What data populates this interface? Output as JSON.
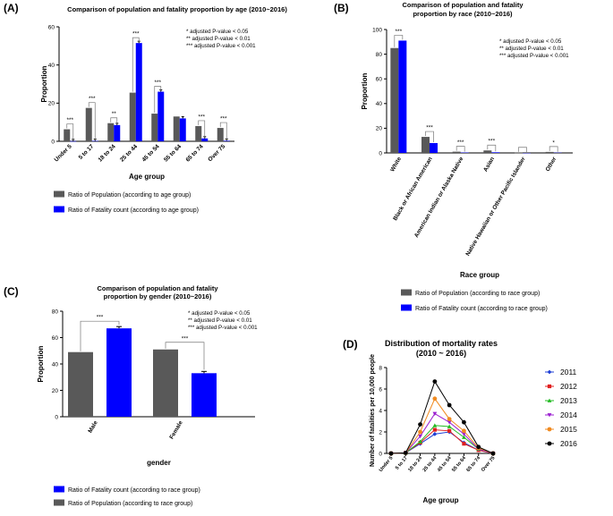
{
  "colors": {
    "population": "#595959",
    "fatality": "#0000ff",
    "black": "#000000"
  },
  "chart_data": [
    {
      "panel": "(A)",
      "type": "bar",
      "title": "Comparison of population and fatality proportion by age (2010~2016)",
      "xlabel": "Age group",
      "ylabel": "Proportion",
      "ylim": [
        0,
        60
      ],
      "yticks": [
        0,
        20,
        40,
        60
      ],
      "categories": [
        "Under 5",
        "5 to 17",
        "18 to 24",
        "25 to 44",
        "45 to 54",
        "55 to 64",
        "65 to 74",
        "Over 75"
      ],
      "series": [
        {
          "name": "Ratio of Population (according to age group)",
          "values": [
            6.3,
            17.5,
            9.5,
            25.5,
            14.5,
            13.0,
            8.0,
            7.0
          ]
        },
        {
          "name": "Ratio of Fatality count (according to age group)",
          "values": [
            0.1,
            0.2,
            8.5,
            51.5,
            26.0,
            12.0,
            1.5,
            0.3
          ]
        }
      ],
      "significance": [
        "***",
        "***",
        "**",
        "***",
        "***",
        "",
        "***",
        "***"
      ],
      "annotations": [
        "*  adjusted P-value  < 0.05",
        "**  adjusted P-value  < 0.01",
        "*** adjusted P-value  < 0.001"
      ]
    },
    {
      "panel": "(B)",
      "type": "bar",
      "title": [
        "Comparison of population and fatality",
        "proportion by race (2010~2016)"
      ],
      "xlabel": "Race group",
      "ylabel": "Proportion",
      "ylim": [
        0,
        100
      ],
      "yticks": [
        0,
        20,
        40,
        60,
        80,
        100
      ],
      "categories": [
        "White",
        "Black or African American",
        "American Indian or Alaska Native",
        "Asian",
        "Native Hawaiian or Other Pacific Islander",
        "Other"
      ],
      "series": [
        {
          "name": "Ratio of Population (according to race group)",
          "values": [
            85.0,
            13.0,
            1.0,
            2.0,
            0.2,
            0.8
          ]
        },
        {
          "name": "Ratio of Fatality count (according to race group)",
          "values": [
            91.0,
            8.0,
            0.3,
            0.5,
            0.0,
            0.2
          ]
        }
      ],
      "significance": [
        "***",
        "***",
        "***",
        "***",
        "",
        "*"
      ],
      "annotations": [
        "*  adjusted P-value  < 0.05",
        "**  adjusted P-value  < 0.01",
        "*** adjusted P-value  < 0.001"
      ]
    },
    {
      "panel": "(C)",
      "type": "bar",
      "title": [
        "Comparison of population and fatality",
        "proportion by gender (2010~2016)"
      ],
      "xlabel": "gender",
      "ylabel": "Proportion",
      "ylim": [
        0,
        80
      ],
      "yticks": [
        0,
        20,
        40,
        60,
        80
      ],
      "categories": [
        "Male",
        "Female"
      ],
      "series": [
        {
          "name": "Ratio of Population (according to race group)",
          "values": [
            49.0,
            51.0
          ]
        },
        {
          "name": "Ratio of Fatality count (according to race group)",
          "values": [
            67.0,
            33.0
          ]
        }
      ],
      "significance": [
        "***",
        "***"
      ],
      "annotations": [
        "*  adjusted P-value  < 0.05",
        "**  adjusted P-value  < 0.01",
        "*** adjusted P-value  < 0.001"
      ]
    },
    {
      "panel": "(D)",
      "type": "line",
      "title": [
        "Distribution of mortality rates",
        "(2010 ~ 2016)"
      ],
      "xlabel": "Age group",
      "ylabel": "Number of fatalities per 10,000 people",
      "ylim": [
        0,
        8
      ],
      "yticks": [
        0,
        2,
        4,
        6,
        8
      ],
      "categories": [
        "Under 5",
        "5 to 17",
        "18 to 24",
        "25 to 44",
        "45 to 54",
        "55 to 64",
        "65 to 74",
        "Over 75"
      ],
      "series": [
        {
          "name": "2011",
          "color": "#1f3fd6",
          "marker": "diamond",
          "values": [
            0.0,
            0.05,
            0.9,
            1.8,
            2.0,
            1.0,
            0.3,
            0.0
          ]
        },
        {
          "name": "2012",
          "color": "#e02020",
          "marker": "square",
          "values": [
            0.0,
            0.05,
            1.0,
            2.2,
            2.1,
            0.9,
            0.3,
            0.0
          ]
        },
        {
          "name": "2013",
          "color": "#22bb22",
          "marker": "triangle",
          "values": [
            0.0,
            0.05,
            1.1,
            2.6,
            2.5,
            1.5,
            0.4,
            0.0
          ]
        },
        {
          "name": "2014",
          "color": "#9b1fd0",
          "marker": "triangle-down",
          "values": [
            0.0,
            0.05,
            1.6,
            3.7,
            2.9,
            1.8,
            0.4,
            0.0
          ]
        },
        {
          "name": "2015",
          "color": "#f08a20",
          "marker": "circle",
          "values": [
            0.0,
            0.05,
            2.0,
            5.1,
            3.2,
            2.1,
            0.5,
            0.0
          ]
        },
        {
          "name": "2016",
          "color": "#000000",
          "marker": "circle",
          "values": [
            0.0,
            0.05,
            2.7,
            6.7,
            4.5,
            2.9,
            0.6,
            0.0
          ]
        }
      ]
    }
  ]
}
